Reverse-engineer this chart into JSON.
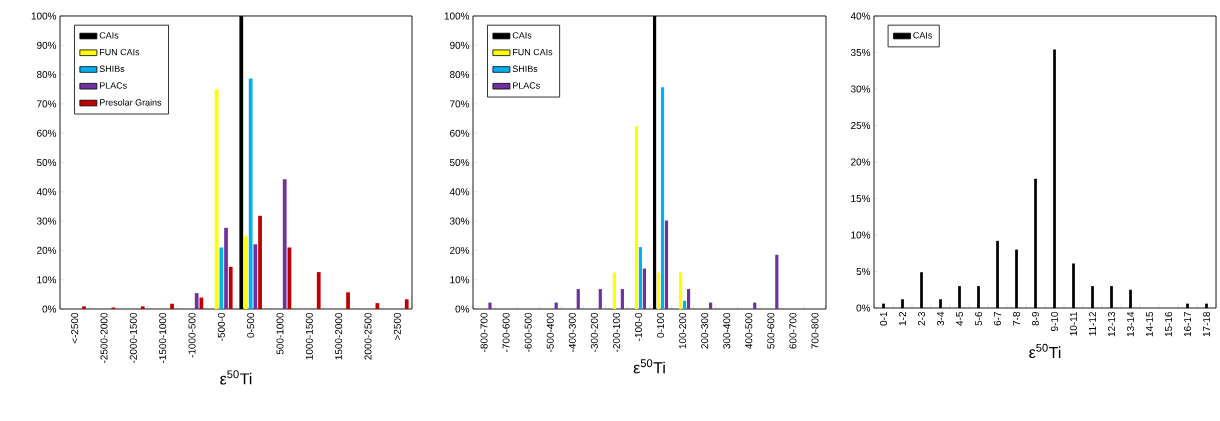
{
  "chart_data": [
    {
      "type": "bar",
      "xlabel": "ε$^{50}$Ti",
      "legend": "top left",
      "categories": [
        "<-2500",
        "-2500-2000",
        "-2000-1500",
        "-1500-1000",
        "-1000-500",
        "-500-0",
        "0-500",
        "500-1000",
        "1000-1500",
        "1500-2000",
        "2000-2500",
        ">2500"
      ],
      "series": [
        {
          "name": "CAIs",
          "color": "#000000",
          "values": [
            null,
            null,
            null,
            null,
            null,
            null,
            100,
            null,
            null,
            null,
            null,
            null
          ]
        },
        {
          "name": "FUN CAIs",
          "color": "#ffff00",
          "values": [
            null,
            null,
            null,
            null,
            null,
            75,
            25,
            null,
            null,
            null,
            null,
            null
          ]
        },
        {
          "name": "SHIBs",
          "color": "#00b0f0",
          "values": [
            null,
            null,
            null,
            null,
            null,
            21,
            78.7,
            null,
            null,
            null,
            null,
            null
          ]
        },
        {
          "name": "PLACs",
          "color": "#7030a0",
          "values": [
            null,
            null,
            null,
            null,
            5.4,
            27.7,
            22.1,
            44.3,
            null,
            null,
            null,
            null
          ]
        },
        {
          "name": "Presolar Grains",
          "color": "#c00000",
          "values": [
            0.9,
            0.5,
            0.9,
            1.8,
            3.9,
            14.4,
            31.8,
            21,
            12.6,
            5.7,
            2,
            3.3
          ]
        }
      ],
      "ylim": [
        0,
        100
      ],
      "yticks": [
        {
          "value": 0,
          "label": "0%"
        },
        {
          "value": 10,
          "label": "10%"
        },
        {
          "value": 20,
          "label": "20%"
        },
        {
          "value": 30,
          "label": "30%"
        },
        {
          "value": 40,
          "label": "40%"
        },
        {
          "value": 50,
          "label": "50%"
        },
        {
          "value": 60,
          "label": "60%"
        },
        {
          "value": 70,
          "label": "70%"
        },
        {
          "value": 80,
          "label": "80%"
        },
        {
          "value": 90,
          "label": "90%"
        },
        {
          "value": 100,
          "label": "100%"
        }
      ]
    },
    {
      "type": "bar",
      "xlabel": "ε$^{50}$Ti",
      "legend": "top left",
      "categories": [
        "-800-700",
        "-700-600",
        "-600-500",
        "-500-400",
        "-400-300",
        "-300-200",
        "-200-100",
        "-100-0",
        "0-100",
        "100-200",
        "200-300",
        "300-400",
        "400-500",
        "500-600",
        "600-700",
        "700-800"
      ],
      "series": [
        {
          "name": "CAIs",
          "color": "#000000",
          "values": [
            null,
            null,
            null,
            null,
            null,
            null,
            null,
            null,
            100,
            null,
            null,
            null,
            null,
            null,
            null,
            null
          ]
        },
        {
          "name": "FUN CAIs",
          "color": "#ffff00",
          "values": [
            null,
            null,
            null,
            null,
            null,
            null,
            12.5,
            62.4,
            12.5,
            12.5,
            null,
            null,
            null,
            null,
            null,
            null
          ]
        },
        {
          "name": "SHIBs",
          "color": "#00b0f0",
          "values": [
            null,
            null,
            null,
            null,
            null,
            null,
            null,
            21.1,
            75.7,
            2.8,
            null,
            null,
            null,
            null,
            null,
            null
          ]
        },
        {
          "name": "PLACs",
          "color": "#7030a0",
          "values": [
            2.2,
            null,
            null,
            2.2,
            6.8,
            6.8,
            6.8,
            13.8,
            30.2,
            6.8,
            2.2,
            null,
            2.2,
            18.5,
            null,
            null
          ]
        }
      ],
      "ylim": [
        0,
        100
      ],
      "yticks": [
        {
          "value": 0,
          "label": "0%"
        },
        {
          "value": 10,
          "label": "10%"
        },
        {
          "value": 20,
          "label": "20%"
        },
        {
          "value": 30,
          "label": "30%"
        },
        {
          "value": 40,
          "label": "40%"
        },
        {
          "value": 50,
          "label": "50%"
        },
        {
          "value": 60,
          "label": "60%"
        },
        {
          "value": 70,
          "label": "70%"
        },
        {
          "value": 80,
          "label": "80%"
        },
        {
          "value": 90,
          "label": "90%"
        },
        {
          "value": 100,
          "label": "100%"
        }
      ]
    },
    {
      "type": "bar",
      "xlabel": "ε$^{50}$Ti",
      "legend": "top left",
      "categories": [
        "0-1",
        "1-2",
        "2-3",
        "3-4",
        "4-5",
        "5-6",
        "6-7",
        "7-8",
        "8-9",
        "9-10",
        "10-11",
        "11-12",
        "12-13",
        "13-14",
        "14-15",
        "15-16",
        "16-17",
        "17-18"
      ],
      "series": [
        {
          "name": "CAIs",
          "color": "#000000",
          "values": [
            0.6,
            1.2,
            4.9,
            1.2,
            3,
            3,
            9.2,
            8,
            17.7,
            35.4,
            6.1,
            3,
            3,
            2.5,
            null,
            null,
            0.6,
            0.6
          ]
        }
      ],
      "ylim": [
        0,
        40
      ],
      "yticks": [
        {
          "value": 0,
          "label": "0%"
        },
        {
          "value": 5,
          "label": "5%"
        },
        {
          "value": 10,
          "label": "10%"
        },
        {
          "value": 15,
          "label": "15%"
        },
        {
          "value": 20,
          "label": "20%"
        },
        {
          "value": 25,
          "label": "25%"
        },
        {
          "value": 30,
          "label": "30%"
        },
        {
          "value": 35,
          "label": "35%"
        },
        {
          "value": 40,
          "label": "40%"
        }
      ]
    }
  ]
}
